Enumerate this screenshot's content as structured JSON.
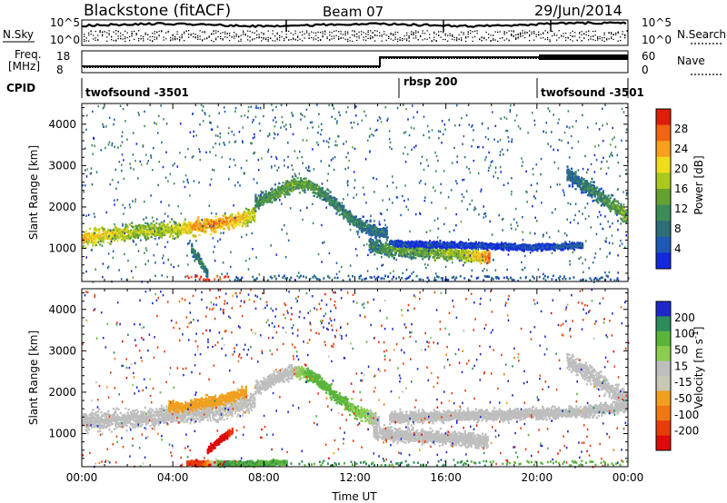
{
  "header": {
    "station": "Blackstone (fitACF)",
    "beam": "Beam 07",
    "date": "29/Jun/2014"
  },
  "sky_panel": {
    "label": "N.Sky",
    "left_top": "10^5",
    "left_bottom": "10^0",
    "right_top": "10^5",
    "right_bottom": "10^0",
    "right_label": "N.Search"
  },
  "freq_panel": {
    "label_line1": "Freq.",
    "label_line2": "[MHz]",
    "left_top": "18",
    "left_bottom": "8",
    "right_top": "60",
    "right_bottom": "0",
    "right_label": "Nave"
  },
  "cpid_panel": {
    "label": "CPID",
    "segments": [
      {
        "name": "twofsound -3501",
        "start": "00:00",
        "end": "13:25"
      },
      {
        "name": "rbsp 200",
        "start": "13:25",
        "end": "20:00"
      },
      {
        "name": "twofsound -3501",
        "start": "20:00",
        "end": "24:00"
      }
    ]
  },
  "chart_data": [
    {
      "type": "heatmap",
      "panel": "power",
      "ylabel": "Slant Range [km]",
      "yticks": [
        "1000",
        "2000",
        "3000",
        "4000"
      ],
      "ylim": [
        200,
        4500
      ],
      "xlim": [
        0,
        24
      ],
      "colorbar_label": "Power [dB]",
      "colorbar_ticks": [
        "28",
        "24",
        "20",
        "16",
        "12",
        "8",
        "4"
      ],
      "colorscale": [
        "#1428dc",
        "#1e5ab4",
        "#2d6e78",
        "#3c8c5a",
        "#64a032",
        "#aac81e",
        "#f0dc1e",
        "#f5a01e",
        "#f06414",
        "#dc1e0a"
      ],
      "bands": [
        {
          "x": [
            0,
            1,
            2,
            3,
            4,
            5,
            6,
            7,
            7.6
          ],
          "range": [
            1250,
            1350,
            1400,
            1450,
            1480,
            1550,
            1630,
            1750,
            1850
          ],
          "width": 340,
          "value": [
            22,
            20,
            18,
            17,
            18,
            23,
            24,
            21,
            18
          ]
        },
        {
          "x": [
            7.6,
            8.5,
            9.3,
            10,
            11,
            12,
            12.8,
            13.4
          ],
          "range": [
            2100,
            2350,
            2600,
            2550,
            2150,
            1650,
            1450,
            1400
          ],
          "width": 300,
          "value": [
            12,
            14,
            15,
            14,
            12,
            11,
            10,
            9
          ]
        },
        {
          "x": [
            12.6,
            13.5,
            14.5,
            15.5,
            16.5,
            17.5,
            17.9
          ],
          "range": [
            1100,
            1000,
            960,
            950,
            900,
            830,
            800
          ],
          "width": 330,
          "value": [
            10,
            14,
            14,
            15,
            17,
            22,
            26
          ]
        },
        {
          "x": [
            13.5,
            15,
            16.5,
            18,
            19.5,
            21,
            22
          ],
          "range": [
            1150,
            1120,
            1100,
            1080,
            1050,
            1060,
            1100
          ],
          "width": 140,
          "value": [
            6,
            5,
            6,
            5,
            6,
            7,
            8
          ]
        },
        {
          "x": [
            21.3,
            22.3,
            23.2,
            24
          ],
          "range": [
            2800,
            2450,
            2100,
            1800
          ],
          "width": 360,
          "value": [
            9,
            11,
            13,
            17
          ]
        },
        {
          "x": [
            4.8,
            5.2,
            5.5
          ],
          "range": [
            1000,
            700,
            400
          ],
          "width": 220,
          "value": [
            10,
            11,
            9
          ]
        }
      ]
    },
    {
      "type": "heatmap",
      "panel": "velocity",
      "ylabel": "Slant Range [km]",
      "yticks": [
        "1000",
        "2000",
        "3000",
        "4000"
      ],
      "ylim": [
        200,
        4500
      ],
      "xlim": [
        0,
        24
      ],
      "xlabel": "Time UT",
      "xticks": [
        "00:00",
        "04:00",
        "08:00",
        "12:00",
        "16:00",
        "20:00",
        "00:00"
      ],
      "colorbar_label": "Velocity [m s^-1]",
      "colorbar_ticks": [
        "200",
        "100",
        "50",
        "15",
        "-15",
        "-50",
        "-100",
        "-200"
      ],
      "colorscale": [
        "#1e28c8",
        "#2d8c5a",
        "#5ab43c",
        "#8ccc50",
        "#bebebe",
        "#c8c8b4",
        "#f0a01e",
        "#f07814",
        "#e63c0a",
        "#dc0a0a"
      ],
      "bands": [
        {
          "x": [
            0,
            2,
            4,
            5.5,
            7,
            7.6
          ],
          "range": [
            1300,
            1380,
            1460,
            1550,
            1700,
            1800
          ],
          "width": 420,
          "value": [
            0,
            0,
            -5,
            -10,
            -15,
            -10
          ]
        },
        {
          "x": [
            3.8,
            4.5,
            5,
            5.8,
            6.5,
            7.2
          ],
          "range": [
            1700,
            1650,
            1750,
            1800,
            1900,
            2050
          ],
          "width": 260,
          "value": [
            -40,
            -50,
            -45,
            -40,
            -40,
            -35
          ]
        },
        {
          "x": [
            7.6,
            8.5,
            9.3,
            10,
            11,
            12,
            13
          ],
          "range": [
            2100,
            2350,
            2550,
            2450,
            2000,
            1550,
            1350
          ],
          "width": 300,
          "value": [
            -10,
            0,
            10,
            40,
            40,
            30,
            10
          ]
        },
        {
          "x": [
            12.8,
            14,
            15.5,
            17,
            17.8
          ],
          "range": [
            1050,
            980,
            930,
            870,
            830
          ],
          "width": 320,
          "value": [
            0,
            0,
            0,
            0,
            0
          ]
        },
        {
          "x": [
            13.5,
            16,
            19,
            22,
            24
          ],
          "range": [
            1400,
            1450,
            1480,
            1550,
            1700
          ],
          "width": 260,
          "value": [
            0,
            0,
            0,
            0,
            0
          ]
        },
        {
          "x": [
            21.3,
            22.3,
            23.2,
            24
          ],
          "range": [
            2800,
            2450,
            2100,
            1800
          ],
          "width": 380,
          "value": [
            0,
            0,
            0,
            0
          ]
        },
        {
          "x": [
            5.5,
            6,
            6.6
          ],
          "range": [
            600,
            850,
            1100
          ],
          "width": 160,
          "value": [
            -200,
            -180,
            -150
          ]
        },
        {
          "x": [
            4.6,
            5.2,
            6.2,
            7.5,
            9
          ],
          "range": [
            320,
            300,
            290,
            300,
            320
          ],
          "width": 120,
          "value": [
            -150,
            -120,
            80,
            60,
            60
          ]
        }
      ]
    }
  ]
}
